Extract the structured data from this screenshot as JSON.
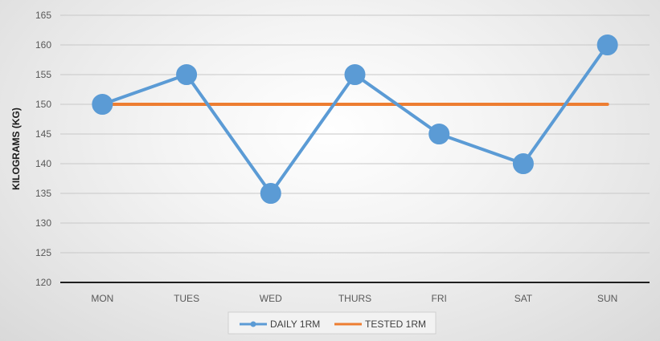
{
  "chart_data": {
    "type": "line",
    "title": "",
    "xlabel": "",
    "ylabel": "KILOGRAMS (KG)",
    "categories": [
      "MON",
      "TUES",
      "WED",
      "THURS",
      "FRI",
      "SAT",
      "SUN"
    ],
    "ylim": [
      120,
      165
    ],
    "yticks": [
      120,
      125,
      130,
      135,
      140,
      145,
      150,
      155,
      160,
      165
    ],
    "grid": true,
    "legend": "bottom",
    "series": [
      {
        "name": "DAILY 1RM",
        "values": [
          150,
          155,
          135,
          155,
          145,
          140,
          160
        ],
        "color": "#5b9bd5",
        "markers": true
      },
      {
        "name": "TESTED 1RM",
        "values": [
          150,
          150,
          150,
          150,
          150,
          150,
          150
        ],
        "color": "#ed7d31",
        "markers": false
      }
    ]
  }
}
